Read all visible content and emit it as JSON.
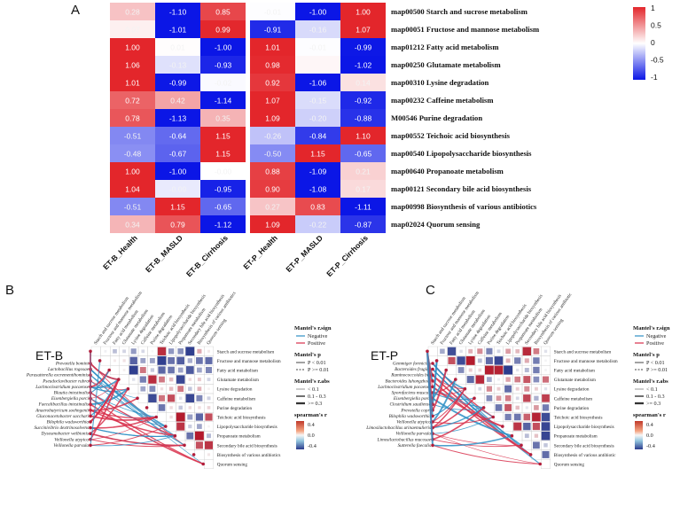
{
  "panels": {
    "a": "A",
    "b": "B",
    "c": "C"
  },
  "colors": {
    "high": "#e3262b",
    "mid": "#ffffff",
    "low": "#0b16e6",
    "positive": "#d8304b",
    "negative": "#2e8fc4"
  },
  "heatmap_left": {
    "columns": [
      "ET-B_Health",
      "ET-B_MASLD",
      "ET-B_Cirrhosis"
    ],
    "values": [
      [
        0.28,
        -1.1,
        0.85
      ],
      [
        0.07,
        -1.01,
        0.99
      ],
      [
        1.0,
        0.01,
        -1.0
      ],
      [
        1.06,
        -0.13,
        -0.93
      ],
      [
        1.01,
        -0.99,
        -0.02
      ],
      [
        0.72,
        0.42,
        -1.14
      ],
      [
        0.78,
        -1.13,
        0.35
      ],
      [
        -0.51,
        -0.64,
        1.15
      ],
      [
        -0.48,
        -0.67,
        1.15
      ],
      [
        1.0,
        -1.0,
        -0.0
      ],
      [
        1.04,
        -0.09,
        -0.95
      ],
      [
        -0.51,
        1.15,
        -0.65
      ],
      [
        0.34,
        0.79,
        -1.12
      ]
    ],
    "labels": [
      [
        "0.28",
        "-1.10",
        "0.85"
      ],
      [
        "0.07",
        "-1.01",
        "0.99"
      ],
      [
        "1.00",
        "0.01",
        "-1.00"
      ],
      [
        "1.06",
        "-0.13",
        "-0.93"
      ],
      [
        "1.01",
        "-0.99",
        "-0.02"
      ],
      [
        "0.72",
        "0.42",
        "-1.14"
      ],
      [
        "0.78",
        "-1.13",
        "0.35"
      ],
      [
        "-0.51",
        "-0.64",
        "1.15"
      ],
      [
        "-0.48",
        "-0.67",
        "1.15"
      ],
      [
        "1.00",
        "-1.00",
        "-0.00"
      ],
      [
        "1.04",
        "-0.09",
        "-0.95"
      ],
      [
        "-0.51",
        "1.15",
        "-0.65"
      ],
      [
        "0.34",
        "0.79",
        "-1.12"
      ]
    ]
  },
  "heatmap_right": {
    "columns": [
      "ET-P_Health",
      "ET-P_MASLD",
      "ET-P_Cirrhosis"
    ],
    "values": [
      [
        -0.01,
        -1.0,
        1.0
      ],
      [
        -0.91,
        -0.16,
        1.07
      ],
      [
        1.01,
        -0.01,
        -0.99
      ],
      [
        0.98,
        0.04,
        -1.02
      ],
      [
        0.92,
        -1.06,
        0.14
      ],
      [
        1.07,
        -0.15,
        -0.92
      ],
      [
        1.09,
        -0.2,
        -0.88
      ],
      [
        -0.26,
        -0.84,
        1.1
      ],
      [
        -0.5,
        1.15,
        -0.65
      ],
      [
        0.88,
        -1.09,
        0.21
      ],
      [
        0.9,
        -1.08,
        0.17
      ],
      [
        0.27,
        0.83,
        -1.11
      ],
      [
        1.09,
        -0.22,
        -0.87
      ]
    ],
    "labels": [
      [
        "-0.01",
        "-1.00",
        "1.00"
      ],
      [
        "-0.91",
        "-0.16",
        "1.07"
      ],
      [
        "1.01",
        "-0.01",
        "-0.99"
      ],
      [
        "0.98",
        "",
        "-1.02"
      ],
      [
        "0.92",
        "-1.06",
        "0.14"
      ],
      [
        "1.07",
        "-0.15",
        "-0.92"
      ],
      [
        "1.09",
        "-0.20",
        "-0.88"
      ],
      [
        "-0.26",
        "-0.84",
        "1.10"
      ],
      [
        "-0.50",
        "1.15",
        "-0.65"
      ],
      [
        "0.88",
        "-1.09",
        "0.21"
      ],
      [
        "0.90",
        "-1.08",
        "0.17"
      ],
      [
        "0.27",
        "0.83",
        "-1.11"
      ],
      [
        "1.09",
        "-0.22",
        "-0.87"
      ]
    ]
  },
  "pathways": [
    "map00500 Starch and sucrose metabolism",
    "map00051 Fructose and mannose metabolism",
    "map01212 Fatty acid metabolism",
    "map00250 Glutamate metabolism",
    "map00310 Lysine degradation",
    "map00232 Caffeine metabolism",
    "M00546 Purine degradation",
    "map00552 Teichoic acid biosynthesis",
    "map00540 Lipopolysaccharide biosynthesis",
    "map00640 Propanoate metabolism",
    "map00121 Secondary bile acid biosynthesis",
    "map00998 Biosynthesis of various antibiotics",
    "map02024 Quorum sensing"
  ],
  "colorbar": {
    "ticks": [
      "1",
      "0.5",
      "0",
      "-0.5",
      "-1"
    ]
  },
  "chart_data": [
    {
      "type": "heatmap",
      "title": "",
      "x_labels": [
        "ET-B_Health",
        "ET-B_MASLD",
        "ET-B_Cirrhosis",
        "ET-P_Health",
        "ET-P_MASLD",
        "ET-P_Cirrhosis"
      ],
      "y_labels": [
        "map00500 Starch and sucrose metabolism",
        "map00051 Fructose and mannose metabolism",
        "map01212 Fatty acid metabolism",
        "map00250 Glutamate metabolism",
        "map00310 Lysine degradation",
        "map00232 Caffeine metabolism",
        "M00546 Purine degradation",
        "map00552 Teichoic acid biosynthesis",
        "map00540 Lipopolysaccharide biosynthesis",
        "map00640 Propanoate metabolism",
        "map00121 Secondary bile acid biosynthesis",
        "map00998 Biosynthesis of various antibiotics",
        "map02024 Quorum sensing"
      ],
      "color_range": [
        -1,
        1
      ]
    },
    {
      "type": "heatmap",
      "title": "ET-B",
      "description": "Mantel test network with pathway correlation matrix"
    },
    {
      "type": "heatmap",
      "title": "ET-P",
      "description": "Mantel test network with pathway correlation matrix"
    }
  ],
  "panel_b": {
    "title": "ET-B",
    "matrix_labels": [
      "Starch and sucrose metabolism",
      "Fructose and mannose metabolism",
      "Fatty acid metabolism",
      "Glutamate metabolism",
      "Lysine degradation",
      "Caffeine metabolism",
      "Purine degradation",
      "Teichoic acid biosynthesis",
      "Lipopolysaccharide biosynthesis",
      "Propanoate metabolism",
      "Secondary bile acid biosynthesis",
      "Biosynthesis of various antibiotics",
      "Quorum sensing"
    ],
    "species": [
      "Prevotella bomini",
      "Lactobacillus rogosae",
      "Parasutterella excrementihominis",
      "Pseudoclavibacter rubra",
      "Lachnoclostridium pacaense",
      "Blautia intestinalis",
      "Eisenbergiella porci",
      "Faecalibacillus intestinalis",
      "Anaerobutyricum soehngenii",
      "Gluconacetobacter sacchari",
      "Bilophila wadsworthia",
      "Succinivibrio dextrinosolvens",
      "Dysosmobacter welbionis",
      "Veillonella atypica",
      "Veillonella parvula"
    ],
    "legend": {
      "sign_title": "Mantel's r.sign",
      "sign_items": [
        "Negative",
        "Positive"
      ],
      "p_title": "Mantel's p",
      "p_items": [
        "P < 0.01",
        "P >= 0.01"
      ],
      "abs_title": "Mantel's r.abs",
      "abs_items": [
        "< 0.1",
        "0.1 - 0.3",
        ">= 0.3"
      ],
      "scale_title": "spearman's r",
      "scale_ticks": [
        "0.4",
        "0.0",
        "-0.4"
      ]
    }
  },
  "panel_c": {
    "title": "ET-P",
    "matrix_labels": [
      "Starch and sucrose metabolism",
      "Fructose and mannose metabolism",
      "Fatty acid metabolism",
      "Glutamate metabolism",
      "Lysine degradation",
      "Caffeine metabolism",
      "Purine degradation",
      "Teichoic acid biosynthesis",
      "Lipopolysaccharide biosynthesis",
      "Propanoate metabolism",
      "Secondary bile acid biosynthesis",
      "Biosynthesis of various antibiotic",
      "Quorum sensing"
    ],
    "species": [
      "Gemmiger formicilis",
      "Bacteroides fragilis",
      "Ruminococcoides bili",
      "Bacteroides luhongzhoui",
      "Lachnoclostridium pacaense",
      "Sporofaciens musculi",
      "Eisenbergiella porci",
      "Clostridium saudiense",
      "Prevotella copri",
      "Bilophila wadsworthia",
      "Veillonella atypica",
      "Limosilactobacillus urinaemulieris",
      "Veillonella parvula",
      "Limosilactobacillus mucosae",
      "Sutterella faecalis"
    ],
    "legend": {
      "sign_title": "Mantel's r.sign",
      "sign_items": [
        "Negative",
        "Positive"
      ],
      "p_title": "Mantel's p",
      "p_items": [
        "P < 0.01",
        "P >= 0.01"
      ],
      "abs_title": "Mantel's r.abs",
      "abs_items": [
        "< 0.1",
        "0.1 - 0.3",
        ">= 0.3"
      ],
      "scale_title": "spearman's r",
      "scale_ticks": [
        "0.4",
        "0.0",
        "-0.4"
      ]
    }
  }
}
